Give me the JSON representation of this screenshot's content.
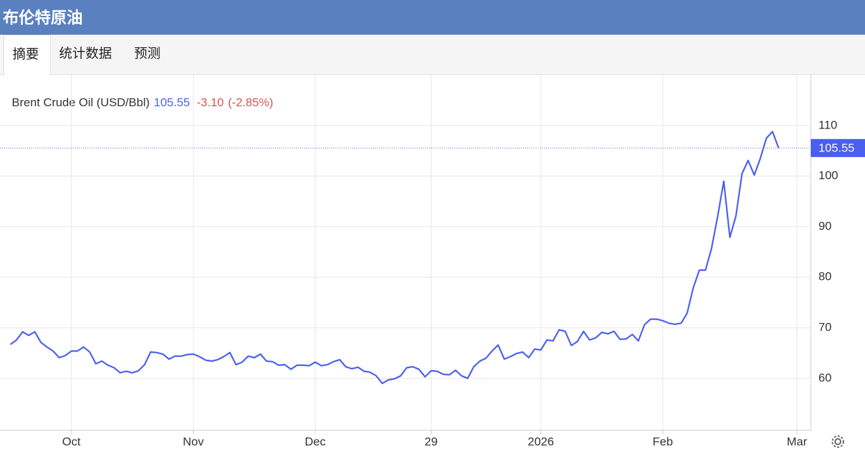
{
  "header": {
    "title": "布伦特原油"
  },
  "tabs": [
    "摘要",
    "统计数据",
    "预测"
  ],
  "chart_data": {
    "type": "line",
    "legend": {
      "name": "Brent Crude Oil (USD/Bbl)",
      "change": "-3.10",
      "change_percent": "(-2.85%)"
    },
    "categories": [
      null,
      null,
      null,
      null,
      null,
      null,
      null,
      null,
      null,
      null,
      "Oct",
      null,
      null,
      null,
      null,
      null,
      null,
      null,
      null,
      null,
      null,
      null,
      null,
      null,
      null,
      null,
      null,
      null,
      null,
      null,
      "Nov",
      null,
      null,
      null,
      null,
      null,
      null,
      null,
      null,
      null,
      null,
      null,
      null,
      null,
      null,
      null,
      null,
      null,
      null,
      null,
      "Dec",
      null,
      null,
      null,
      null,
      null,
      null,
      null,
      null,
      null,
      null,
      null,
      null,
      null,
      null,
      null,
      null,
      null,
      null,
      "29",
      null,
      null,
      null,
      null,
      null,
      null,
      null,
      null,
      null,
      null,
      null,
      null,
      null,
      null,
      null,
      null,
      null,
      "2026",
      null,
      null,
      null,
      null,
      null,
      null,
      null,
      null,
      null,
      null,
      null,
      null,
      null,
      null,
      null,
      null,
      null,
      null,
      null,
      "Feb",
      null,
      null,
      null,
      null,
      null,
      null,
      null,
      null,
      null,
      null,
      null,
      null,
      null,
      null,
      null,
      null,
      null,
      null,
      null,
      null,
      null,
      "Mar"
    ],
    "series": [
      {
        "name": "Brent Crude Oil",
        "color": "#4a5ff0",
        "values": [
          66.7,
          67.6,
          69.2,
          68.5,
          69.2,
          67.1,
          66.2,
          65.4,
          64.1,
          64.5,
          65.4,
          65.4,
          66.2,
          65.2,
          62.9,
          63.4,
          62.6,
          62.1,
          61.1,
          61.4,
          61.1,
          61.5,
          62.7,
          65.2,
          65.1,
          64.8,
          63.8,
          64.4,
          64.4,
          64.7,
          64.8,
          64.3,
          63.6,
          63.4,
          63.7,
          64.3,
          65.1,
          62.7,
          63.2,
          64.4,
          64.1,
          64.8,
          63.4,
          63.3,
          62.6,
          62.7,
          61.8,
          62.6,
          62.6,
          62.5,
          63.2,
          62.5,
          62.7,
          63.3,
          63.7,
          62.3,
          61.9,
          62.2,
          61.4,
          61.2,
          60.5,
          59.0,
          59.7,
          59.9,
          60.5,
          62.1,
          62.3,
          61.8,
          60.3,
          61.5,
          61.4,
          60.8,
          60.7,
          61.6,
          60.5,
          60.0,
          62.3,
          63.4,
          64.0,
          65.4,
          66.6,
          63.8,
          64.3,
          64.9,
          65.2,
          64.1,
          65.8,
          65.6,
          67.6,
          67.4,
          69.6,
          69.3,
          66.5,
          67.3,
          69.3,
          67.6,
          68.0,
          69.1,
          68.8,
          69.3,
          67.7,
          67.8,
          68.7,
          67.4,
          70.6,
          71.7,
          71.7,
          71.4,
          70.9,
          70.7,
          70.9,
          72.9,
          77.9,
          81.4,
          81.4,
          85.7,
          92.0,
          99.0,
          87.9,
          92.1,
          100.5,
          103.1,
          100.2,
          103.5,
          107.5,
          108.8,
          105.55,
          null,
          null,
          null
        ]
      }
    ],
    "ylim": [
      50,
      120
    ],
    "yticks": [
      60,
      70,
      80,
      90,
      100,
      110
    ],
    "grid": true,
    "change_color": "#d9534f"
  }
}
